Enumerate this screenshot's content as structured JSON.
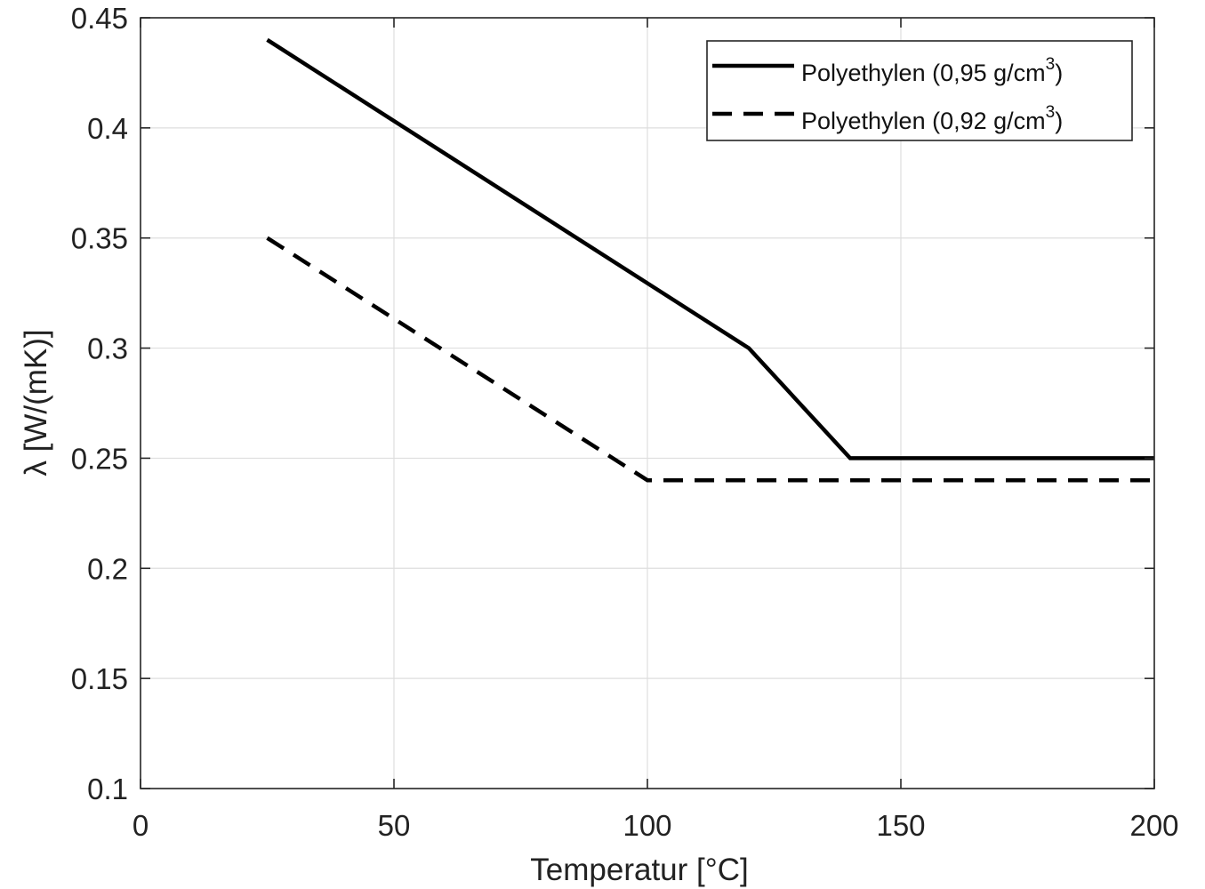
{
  "chart_data": {
    "type": "line",
    "title": "",
    "xlabel": "Temperatur [°C]",
    "ylabel": "λ [W/(mK)]",
    "xlim": [
      0,
      200
    ],
    "ylim": [
      0.1,
      0.45
    ],
    "xticks": [
      0,
      50,
      100,
      150,
      200
    ],
    "xtick_labels": [
      "0",
      "50",
      "100",
      "150",
      "200"
    ],
    "yticks": [
      0.1,
      0.15,
      0.2,
      0.25,
      0.3,
      0.35,
      0.4,
      0.45
    ],
    "ytick_labels": [
      "0.1",
      "0.15",
      "0.2",
      "0.25",
      "0.3",
      "0.35",
      "0.4",
      "0.45"
    ],
    "grid": true,
    "legend_position": "top-right",
    "series": [
      {
        "name": "Polyethylen (0,95 g/cm³)",
        "name_base": "Polyethylen (0,95 g/cm",
        "name_sup": "3",
        "name_tail": ")",
        "style": "solid",
        "color": "#000000",
        "x": [
          25,
          120,
          140,
          200
        ],
        "y": [
          0.44,
          0.3,
          0.25,
          0.25
        ]
      },
      {
        "name": "Polyethylen (0,92 g/cm³)",
        "name_base": "Polyethylen (0,92 g/cm",
        "name_sup": "3",
        "name_tail": ")",
        "style": "dashed",
        "color": "#000000",
        "x": [
          25,
          100,
          200
        ],
        "y": [
          0.35,
          0.24,
          0.24
        ]
      }
    ]
  }
}
